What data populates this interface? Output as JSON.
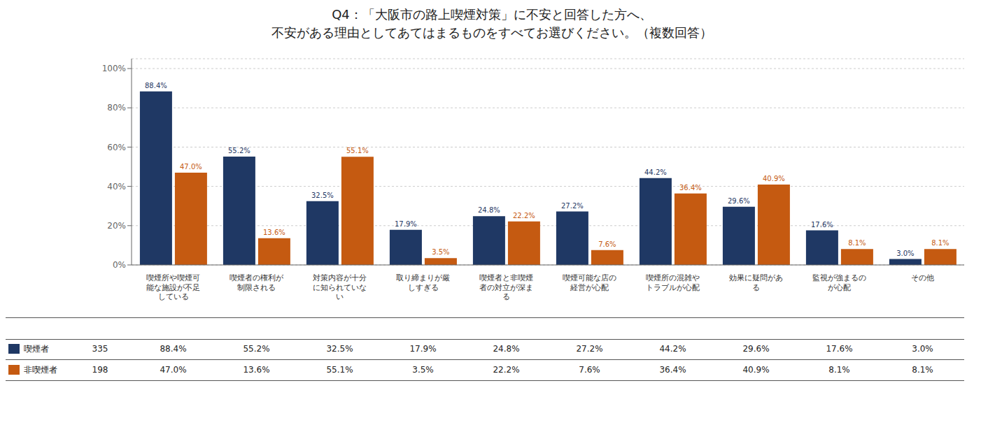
{
  "chart_data": {
    "type": "bar",
    "title": "Q4：「大阪市の路上喫煙対策」に不安と回答した方へ、",
    "subtitle": "不安がある理由としてあてはまるものをすべてお選びください。（複数回答）",
    "categories": [
      "喫煙所や喫煙可\n能な施設が不足\nしている",
      "喫煙者の権利が\n制限される",
      "対策内容が十分\nに知られていな\nい",
      "取り締まりが厳\nしすぎる",
      "喫煙者と非喫煙\n者の対立が深ま\nる",
      "喫煙可能な店の\n経営が心配",
      "喫煙所の混雑や\nトラブルが心配",
      "効果に疑問があ\nる",
      "監視が強まるの\nが心配",
      "その他"
    ],
    "series": [
      {
        "name": "喫煙者",
        "color": "#1f3864",
        "n": 335,
        "values": [
          88.4,
          55.2,
          32.5,
          17.9,
          24.8,
          27.2,
          44.2,
          29.6,
          17.6,
          3.0
        ],
        "value_labels": [
          "88.4%",
          "55.2%",
          "32.5%",
          "17.9%",
          "24.8%",
          "27.2%",
          "44.2%",
          "29.6%",
          "17.6%",
          "3.0%"
        ]
      },
      {
        "name": "非喫煙者",
        "color": "#c55a11",
        "n": 198,
        "values": [
          47.0,
          13.6,
          55.1,
          3.5,
          22.2,
          7.6,
          36.4,
          40.9,
          8.1,
          8.1
        ],
        "value_labels": [
          "47.0%",
          "13.6%",
          "55.1%",
          "3.5%",
          "22.2%",
          "7.6%",
          "36.4%",
          "40.9%",
          "8.1%",
          "8.1%"
        ]
      }
    ],
    "ylim": [
      0,
      105
    ],
    "yticks": [
      {
        "value": 0,
        "label": "0%"
      },
      {
        "value": 20,
        "label": "20%"
      },
      {
        "value": 40,
        "label": "40%"
      },
      {
        "value": 60,
        "label": "60%"
      },
      {
        "value": 80,
        "label": "80%"
      },
      {
        "value": 100,
        "label": "100%"
      }
    ],
    "grid": true,
    "data_labels": true
  }
}
